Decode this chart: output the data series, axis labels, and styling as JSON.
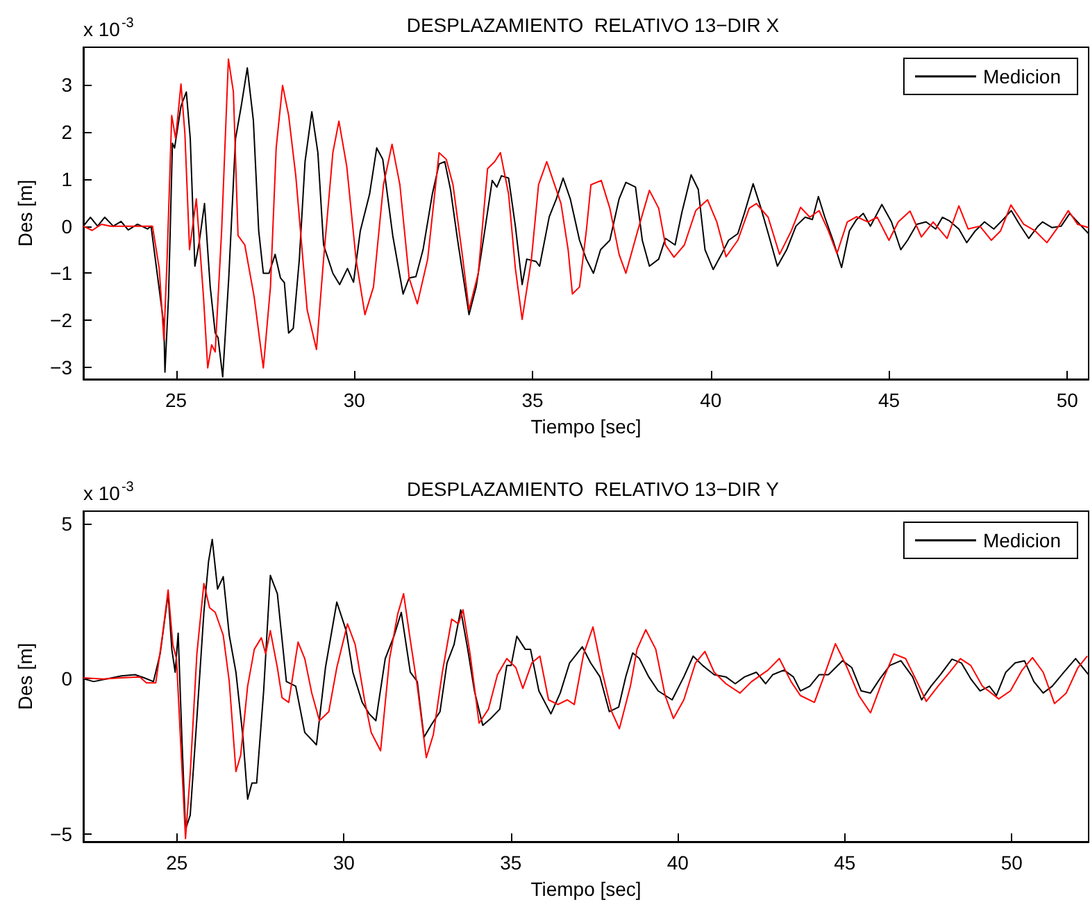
{
  "chart_data": [
    {
      "type": "line",
      "title": "DESPLAZAMIENTO  RELATIVO 13−DIR X",
      "xlabel": "Tiempo [sec]",
      "ylabel": "Des [m]",
      "annotations": [
        "x 10$^{-3}$"
      ],
      "xlim": [
        22.4,
        50.6
      ],
      "ylim": [
        -3.25,
        3.8
      ],
      "xticks": [
        25,
        30,
        35,
        40,
        45,
        50
      ],
      "yticks": [
        -3,
        -2,
        -1,
        0,
        1,
        2,
        3
      ],
      "legend": "top right",
      "series": [
        {
          "name": "Medicion",
          "color": "#000000",
          "x": [
            22.4,
            22.6,
            22.8,
            23.0,
            23.24,
            23.46,
            23.66,
            23.92,
            24.2,
            24.3,
            24.66,
            24.69,
            24.79,
            24.9,
            24.96,
            25.14,
            25.29,
            25.4,
            25.53,
            25.64,
            25.8,
            25.96,
            26.1,
            26.18,
            26.31,
            26.48,
            26.67,
            26.83,
            27.0,
            27.17,
            27.32,
            27.45,
            27.61,
            27.78,
            27.93,
            28.04,
            28.16,
            28.29,
            28.46,
            28.62,
            28.81,
            28.98,
            29.14,
            29.4,
            29.59,
            29.81,
            29.98,
            30.17,
            30.43,
            30.63,
            30.8,
            31.08,
            31.37,
            31.54,
            31.73,
            31.93,
            32.19,
            32.38,
            32.54,
            32.7,
            32.9,
            33.22,
            33.42,
            33.68,
            33.87,
            34.0,
            34.13,
            34.33,
            34.52,
            34.71,
            34.84,
            35.1,
            35.2,
            35.47,
            35.67,
            35.86,
            36.06,
            36.32,
            36.51,
            36.71,
            36.91,
            37.17,
            37.43,
            37.62,
            37.89,
            38.08,
            38.28,
            38.54,
            38.73,
            39.0,
            39.19,
            39.45,
            39.65,
            39.84,
            40.07,
            40.3,
            40.5,
            40.76,
            40.95,
            41.19,
            41.41,
            41.63,
            41.87,
            42.13,
            42.39,
            42.65,
            42.85,
            43.02,
            43.2,
            43.43,
            43.67,
            43.89,
            44.09,
            44.28,
            44.48,
            44.8,
            45.07,
            45.33,
            45.52,
            45.78,
            46.04,
            46.31,
            46.5,
            46.7,
            46.96,
            47.18,
            47.42,
            47.68,
            47.94,
            48.2,
            48.43,
            48.66,
            48.92,
            49.18,
            49.31,
            49.57,
            49.83,
            50.07,
            50.35,
            50.6
          ],
          "values": [
            0,
            0.19,
            0,
            0.19,
            0,
            0.1,
            -0.08,
            0.04,
            -0.06,
            0,
            -2.1,
            -3.1,
            -1.5,
            1.76,
            1.66,
            2.55,
            2.85,
            1.86,
            -0.85,
            -0.4,
            0.48,
            -1.29,
            -2.27,
            -2.37,
            -3.2,
            -1.1,
            1.86,
            2.55,
            3.36,
            2.25,
            -0.1,
            -1.0,
            -1.0,
            -0.6,
            -1.1,
            -1.2,
            -2.27,
            -2.17,
            -0.7,
            1.37,
            2.43,
            1.56,
            -0.4,
            -1.0,
            -1.24,
            -0.9,
            -1.19,
            -0.1,
            0.68,
            1.66,
            1.42,
            -0.2,
            -1.44,
            -1.1,
            -1.07,
            -0.5,
            0.68,
            1.32,
            1.37,
            0.78,
            -0.3,
            -1.88,
            -1.29,
            0,
            0.97,
            0.83,
            1.07,
            1.02,
            0,
            -1.24,
            -0.7,
            -0.75,
            -0.85,
            0.2,
            0.58,
            1.02,
            0.58,
            -0.3,
            -0.7,
            -1.0,
            -0.5,
            -0.3,
            0.58,
            0.93,
            0.83,
            -0.3,
            -0.85,
            -0.7,
            -0.26,
            -0.4,
            0.29,
            1.09,
            0.78,
            -0.5,
            -0.92,
            -0.6,
            -0.3,
            -0.16,
            0.29,
            0.9,
            0.38,
            -0.2,
            -0.85,
            -0.5,
            0,
            0.19,
            0.14,
            0.63,
            0.19,
            -0.3,
            -0.88,
            -0.1,
            0.14,
            0.27,
            0,
            0.46,
            0.09,
            -0.5,
            -0.3,
            0.04,
            0.09,
            -0.06,
            0.19,
            0.11,
            -0.06,
            -0.35,
            -0.1,
            0.09,
            -0.06,
            0.14,
            0.33,
            0.04,
            -0.26,
            0,
            0.09,
            -0.03,
            0,
            0.27,
            0.04,
            -0.16
          ]
        },
        {
          "color": "#ff0000",
          "x": [
            22.4,
            22.65,
            22.91,
            23.17,
            23.69,
            24.34,
            24.53,
            24.66,
            24.75,
            24.88,
            24.99,
            25.14,
            25.25,
            25.38,
            25.57,
            25.77,
            25.89,
            26.0,
            26.1,
            26.28,
            26.47,
            26.61,
            26.74,
            26.93,
            27.19,
            27.45,
            27.65,
            27.81,
            27.99,
            28.16,
            28.36,
            28.68,
            28.94,
            29.14,
            29.4,
            29.57,
            29.79,
            30.05,
            30.3,
            30.54,
            30.82,
            31.06,
            31.28,
            31.54,
            31.77,
            32.06,
            32.38,
            32.58,
            32.77,
            33.03,
            33.22,
            33.48,
            33.74,
            33.94,
            34.1,
            34.33,
            34.52,
            34.71,
            34.97,
            35.17,
            35.4,
            35.8,
            36.0,
            36.12,
            36.32,
            36.51,
            36.64,
            36.93,
            37.17,
            37.43,
            37.62,
            37.95,
            38.28,
            38.54,
            38.73,
            38.97,
            39.26,
            39.58,
            39.91,
            40.17,
            40.43,
            40.76,
            41.08,
            41.28,
            41.61,
            41.93,
            42.26,
            42.52,
            42.78,
            43.04,
            43.3,
            43.54,
            43.83,
            44.09,
            44.41,
            44.67,
            45.0,
            45.26,
            45.59,
            45.91,
            46.24,
            46.63,
            46.96,
            47.22,
            47.55,
            47.87,
            48.13,
            48.42,
            48.78,
            49.1,
            49.43,
            49.76,
            50.03,
            50.29,
            50.6
          ],
          "values": [
            0,
            -0.09,
            0.04,
            0,
            0,
            0,
            -0.9,
            -2.42,
            -0.7,
            2.35,
            1.86,
            3.02,
            1.96,
            -0.5,
            0.58,
            -1.49,
            -3.01,
            -2.52,
            -2.67,
            -0.1,
            3.55,
            2.85,
            -0.2,
            -0.4,
            -1.49,
            -3.01,
            -1.29,
            1.66,
            2.99,
            2.35,
            1.07,
            -1.78,
            -2.62,
            -0.7,
            1.56,
            2.23,
            1.27,
            -0.7,
            -1.88,
            -1.29,
            0.88,
            1.74,
            0.88,
            -1.1,
            -1.65,
            -0.7,
            1.56,
            1.42,
            0.88,
            -0.6,
            -1.78,
            -1.0,
            1.22,
            1.37,
            1.56,
            0.68,
            -0.9,
            -1.98,
            -0.7,
            0.88,
            1.37,
            0.48,
            -0.5,
            -1.44,
            -1.29,
            -0.1,
            0.88,
            0.97,
            0.38,
            -0.6,
            -1.0,
            -0.1,
            0.76,
            0.38,
            -0.4,
            -0.66,
            -0.4,
            0.33,
            0.56,
            0.09,
            -0.65,
            -0.3,
            0.38,
            0.48,
            0.19,
            -0.6,
            -0.1,
            0.4,
            0.19,
            0.33,
            -0.1,
            -0.58,
            0.09,
            0.2,
            0.09,
            0.19,
            -0.3,
            0.09,
            0.32,
            -0.23,
            0.09,
            -0.26,
            0.43,
            -0.06,
            0,
            -0.3,
            -0.1,
            0.45,
            0.04,
            -0.1,
            -0.35,
            0,
            0.33,
            0.04,
            -0.03
          ]
        }
      ]
    },
    {
      "type": "line",
      "title": "DESPLAZAMIENTO  RELATIVO 13−DIR Y",
      "xlabel": "Tiempo [sec]",
      "ylabel": "Des [m]",
      "annotations": [
        "x 10$^{-3}$"
      ],
      "xlim": [
        22.2,
        52.3
      ],
      "ylim": [
        -5.25,
        5.4
      ],
      "xticks": [
        25,
        30,
        35,
        40,
        45,
        50
      ],
      "yticks": [
        -5,
        0,
        5
      ],
      "legend": "top right",
      "series": [
        {
          "name": "Medicion",
          "color": "#000000",
          "x": [
            22.2,
            22.51,
            23.06,
            23.34,
            23.75,
            24.02,
            24.3,
            24.5,
            24.74,
            24.85,
            24.95,
            25.04,
            25.15,
            25.26,
            25.4,
            25.6,
            25.81,
            25.95,
            26.06,
            26.22,
            26.39,
            26.57,
            26.77,
            26.98,
            27.12,
            27.25,
            27.39,
            27.6,
            27.8,
            28.01,
            28.28,
            28.56,
            28.83,
            29.18,
            29.45,
            29.79,
            30.07,
            30.27,
            30.55,
            30.76,
            30.96,
            31.24,
            31.51,
            31.72,
            31.99,
            32.2,
            32.4,
            32.61,
            32.88,
            33.09,
            33.3,
            33.5,
            33.71,
            33.91,
            34.16,
            34.4,
            34.67,
            34.88,
            35.01,
            35.18,
            35.43,
            35.59,
            35.84,
            36.2,
            36.48,
            36.76,
            37.14,
            37.39,
            37.67,
            37.95,
            38.23,
            38.44,
            38.65,
            38.85,
            39.13,
            39.41,
            39.83,
            40.18,
            40.46,
            40.74,
            41.09,
            41.44,
            41.72,
            42.0,
            42.35,
            42.63,
            42.84,
            43.18,
            43.46,
            43.67,
            43.95,
            44.23,
            44.51,
            44.93,
            45.21,
            45.49,
            45.77,
            46.05,
            46.35,
            46.68,
            47.03,
            47.3,
            47.58,
            47.86,
            48.21,
            48.49,
            48.77,
            49.05,
            49.33,
            49.54,
            49.82,
            50.1,
            50.38,
            50.66,
            50.94,
            51.21,
            51.56,
            51.91,
            52.3
          ],
          "values": [
            0,
            -0.09,
            0.03,
            0.09,
            0.13,
            0.03,
            -0.09,
            0.8,
            2.74,
            0.95,
            0.21,
            1.47,
            -1.88,
            -4.85,
            -4.4,
            -1.28,
            2.14,
            3.78,
            4.49,
            2.89,
            3.29,
            1.4,
            0.21,
            -1.88,
            -3.88,
            -3.36,
            -3.36,
            -0.39,
            3.33,
            2.74,
            -0.09,
            -0.24,
            -1.73,
            -2.13,
            0.36,
            2.47,
            1.55,
            0.21,
            -0.76,
            -1.13,
            -1.35,
            0.65,
            1.4,
            2.14,
            0.21,
            -0.09,
            -1.88,
            -1.5,
            -1.06,
            0.51,
            1.1,
            2.22,
            0.95,
            -0.39,
            -1.5,
            -1.28,
            -0.98,
            0.43,
            0.43,
            1.37,
            0.95,
            0.95,
            -0.39,
            -1.13,
            -0.46,
            0.51,
            1.03,
            0.51,
            0.06,
            -1.06,
            -0.91,
            0.06,
            0.83,
            0.65,
            0.06,
            -0.39,
            -0.68,
            0.06,
            0.73,
            0.43,
            0.13,
            0.06,
            -0.16,
            0.06,
            0.21,
            -0.16,
            0.13,
            0.28,
            0.06,
            -0.39,
            -0.24,
            0.13,
            0.13,
            0.58,
            0.36,
            -0.39,
            -0.46,
            0,
            0.43,
            0.58,
            0.06,
            -0.68,
            -0.24,
            0.13,
            0.63,
            0.51,
            0,
            -0.39,
            -0.24,
            -0.54,
            0.21,
            0.51,
            0.58,
            -0.09,
            -0.46,
            -0.24,
            0.21,
            0.65,
            0.13
          ]
        },
        {
          "color": "#ff0000",
          "x": [
            22.2,
            22.79,
            23.34,
            23.89,
            24.09,
            24.37,
            24.57,
            24.74,
            24.88,
            24.99,
            25.12,
            25.26,
            25.4,
            25.6,
            25.81,
            25.98,
            26.15,
            26.39,
            26.57,
            26.77,
            26.91,
            27.12,
            27.32,
            27.53,
            27.66,
            27.8,
            28.01,
            28.15,
            28.35,
            28.63,
            28.83,
            29.04,
            29.27,
            29.55,
            29.79,
            30.11,
            30.34,
            30.62,
            30.82,
            31.1,
            31.37,
            31.61,
            31.79,
            31.99,
            32.2,
            32.47,
            32.68,
            32.95,
            33.23,
            33.43,
            33.57,
            33.78,
            34.05,
            34.33,
            34.6,
            34.88,
            35.15,
            35.36,
            35.63,
            35.87,
            36.13,
            36.41,
            36.69,
            36.9,
            37.18,
            37.46,
            37.74,
            38.02,
            38.25,
            38.58,
            38.78,
            39.04,
            39.34,
            39.62,
            39.87,
            40.18,
            40.53,
            40.81,
            41.09,
            41.44,
            41.86,
            42.21,
            42.7,
            43.04,
            43.39,
            43.67,
            44.09,
            44.37,
            44.72,
            45.07,
            45.42,
            45.77,
            46.12,
            46.47,
            46.82,
            47.16,
            47.44,
            47.79,
            48.14,
            48.46,
            48.77,
            49.12,
            49.61,
            49.96,
            50.31,
            50.62,
            50.94,
            51.28,
            51.63,
            51.98,
            52.26
          ],
          "values": [
            0.03,
            -0.01,
            0.03,
            0.06,
            -0.13,
            -0.13,
            1.4,
            2.86,
            1.1,
            0.65,
            -2.17,
            -5.15,
            -3.07,
            0.8,
            3.07,
            2.29,
            2.14,
            1.4,
            -0.09,
            -2.99,
            -2.47,
            -0.24,
            0.95,
            1.32,
            0.8,
            1.55,
            0.36,
            -0.61,
            -0.76,
            1.18,
            0.65,
            -0.46,
            -1.35,
            -1.06,
            0.36,
            1.77,
            1.1,
            -0.68,
            -1.73,
            -2.32,
            0.65,
            2.07,
            2.74,
            1.25,
            -0.24,
            -2.54,
            -1.8,
            0.21,
            1.92,
            1.77,
            2.22,
            0.8,
            -1.43,
            -0.98,
            0.13,
            0.65,
            0.36,
            -0.31,
            0.51,
            0.73,
            -0.68,
            -0.83,
            -0.68,
            -0.83,
            0.8,
            1.67,
            0.21,
            -1.06,
            -1.61,
            -0.24,
            0.95,
            1.58,
            0.95,
            -0.54,
            -1.28,
            -0.68,
            0.51,
            0.88,
            0.21,
            -0.16,
            -0.46,
            -0.09,
            0.28,
            0.65,
            -0.09,
            -0.54,
            -0.76,
            0.06,
            1.13,
            0.36,
            -0.54,
            -1.1,
            -0.09,
            0.8,
            0.65,
            -0.09,
            -0.73,
            -0.24,
            0.21,
            0.65,
            0.43,
            -0.24,
            -0.65,
            -0.39,
            0.28,
            0.68,
            0.21,
            -0.8,
            -0.46,
            0.36,
            0.73
          ]
        }
      ]
    }
  ]
}
